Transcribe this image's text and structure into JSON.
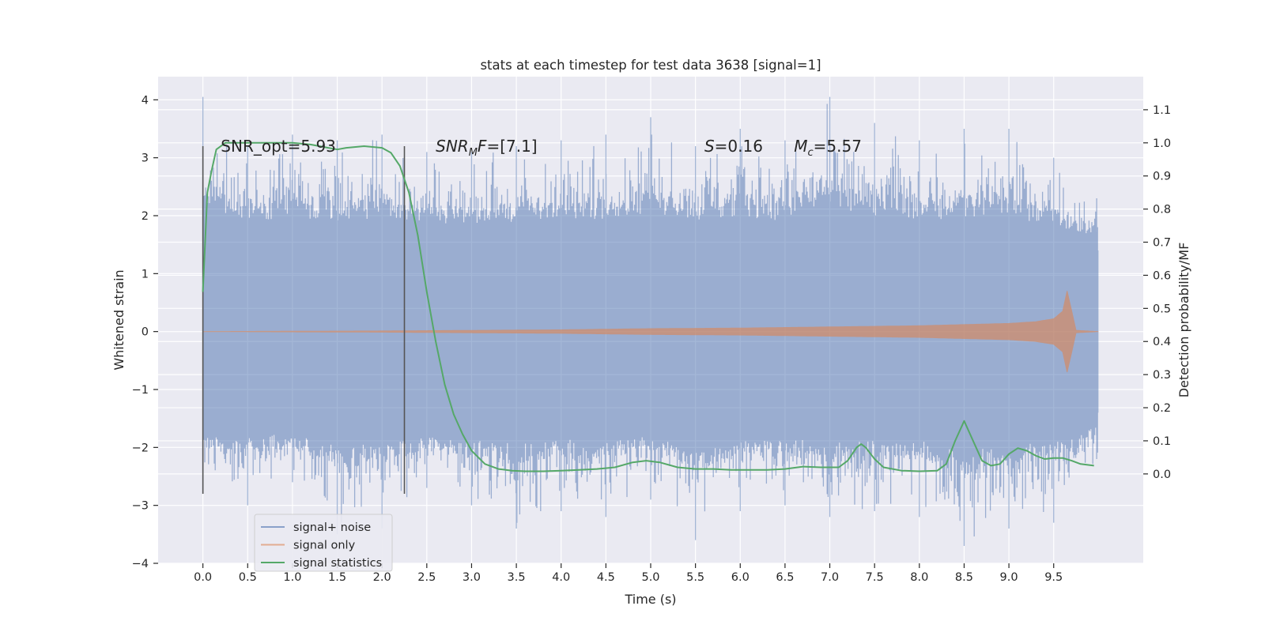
{
  "chart_data": {
    "type": "line",
    "title": "stats at each timestep for test data 3638 [signal=1]",
    "xlabel": "Time (s)",
    "ylabel_left": "Whitened strain",
    "ylabel_right": "Detection probability/MF",
    "xlim": [
      -0.5,
      10.5
    ],
    "ylim_left": [
      -4.0,
      4.4
    ],
    "ylim_right": [
      -0.27,
      1.2
    ],
    "x_ticks": [
      "0.0",
      "0.5",
      "1.0",
      "1.5",
      "2.0",
      "2.5",
      "3.0",
      "3.5",
      "4.0",
      "4.5",
      "5.0",
      "5.5",
      "6.0",
      "6.5",
      "7.0",
      "7.5",
      "8.0",
      "8.5",
      "9.0",
      "9.5"
    ],
    "y_ticks_left": [
      "−4",
      "−3",
      "−2",
      "−1",
      "0",
      "1",
      "2",
      "3",
      "4"
    ],
    "y_ticks_right": [
      "0.0",
      "0.1",
      "0.2",
      "0.3",
      "0.4",
      "0.5",
      "0.6",
      "0.7",
      "0.8",
      "0.9",
      "1.0",
      "1.1"
    ],
    "grid": true,
    "legend_position": "lower-left",
    "colors": {
      "background": "#eaeaf2",
      "grid": "#ffffff",
      "noise": "#4c72b0",
      "signal": "#dd8452",
      "stats": "#55a868",
      "marker": "#555555"
    },
    "series": [
      {
        "name": "signal+ noise",
        "axis": "left",
        "time_range_s": [
          0.0,
          10.0
        ],
        "envelope": {
          "x": [
            0.0,
            0.5,
            1.0,
            1.5,
            2.0,
            2.5,
            3.0,
            3.5,
            4.0,
            4.5,
            5.0,
            5.5,
            6.0,
            6.5,
            7.0,
            7.5,
            8.0,
            8.5,
            9.0,
            9.5,
            10.0
          ],
          "max": [
            4.05,
            3.2,
            3.4,
            3.3,
            3.4,
            3.1,
            3.1,
            3.2,
            3.3,
            3.4,
            3.7,
            3.2,
            3.5,
            3.3,
            4.05,
            3.6,
            3.3,
            3.5,
            3.5,
            3.0,
            2.3
          ],
          "min": [
            -2.8,
            -3.0,
            -2.6,
            -3.5,
            -3.4,
            -2.7,
            -3.0,
            -3.4,
            -3.1,
            -3.2,
            -2.9,
            -3.6,
            -3.1,
            -3.0,
            -3.2,
            -3.1,
            -3.2,
            -3.7,
            -3.4,
            -3.3,
            -2.2
          ]
        }
      },
      {
        "name": "signal only",
        "axis": "left",
        "envelope": {
          "x": [
            0.0,
            2.0,
            3.0,
            4.0,
            5.0,
            6.0,
            7.0,
            8.0,
            8.5,
            9.0,
            9.3,
            9.5,
            9.6,
            9.65,
            9.68,
            9.75,
            10.0
          ],
          "amp": [
            0.0,
            0.01,
            0.02,
            0.03,
            0.05,
            0.06,
            0.08,
            0.1,
            0.12,
            0.14,
            0.17,
            0.22,
            0.35,
            0.7,
            0.5,
            0.02,
            0.0
          ]
        }
      },
      {
        "name": "signal statistics",
        "axis": "right",
        "x": [
          0.0,
          0.05,
          0.1,
          0.15,
          0.25,
          0.5,
          0.8,
          1.0,
          1.2,
          1.4,
          1.5,
          1.6,
          1.8,
          2.0,
          2.1,
          2.2,
          2.3,
          2.4,
          2.5,
          2.6,
          2.7,
          2.8,
          2.9,
          3.0,
          3.15,
          3.3,
          3.45,
          3.6,
          3.8,
          4.0,
          4.2,
          4.4,
          4.6,
          4.8,
          4.95,
          5.1,
          5.3,
          5.5,
          5.7,
          5.9,
          6.1,
          6.3,
          6.5,
          6.7,
          6.9,
          7.1,
          7.2,
          7.3,
          7.35,
          7.4,
          7.5,
          7.6,
          7.8,
          8.0,
          8.2,
          8.3,
          8.4,
          8.5,
          8.6,
          8.7,
          8.8,
          8.9,
          9.0,
          9.1,
          9.2,
          9.3,
          9.4,
          9.5,
          9.6,
          9.7,
          9.8,
          9.95
        ],
        "y": [
          0.55,
          0.85,
          0.92,
          0.98,
          1.0,
          1.0,
          1.0,
          1.0,
          0.995,
          0.985,
          0.98,
          0.985,
          0.99,
          0.985,
          0.97,
          0.93,
          0.85,
          0.72,
          0.55,
          0.4,
          0.27,
          0.18,
          0.12,
          0.07,
          0.03,
          0.015,
          0.01,
          0.008,
          0.008,
          0.01,
          0.012,
          0.015,
          0.02,
          0.035,
          0.04,
          0.035,
          0.02,
          0.015,
          0.015,
          0.012,
          0.012,
          0.012,
          0.015,
          0.022,
          0.02,
          0.02,
          0.04,
          0.08,
          0.09,
          0.08,
          0.045,
          0.02,
          0.01,
          0.008,
          0.01,
          0.03,
          0.1,
          0.16,
          0.1,
          0.04,
          0.025,
          0.03,
          0.06,
          0.078,
          0.07,
          0.055,
          0.045,
          0.048,
          0.048,
          0.04,
          0.03,
          0.025
        ]
      }
    ],
    "vlines": {
      "x": [
        0.0,
        2.25
      ],
      "y_range_left": [
        -2.8,
        3.2
      ]
    },
    "annotations": [
      {
        "x": 0.2,
        "y": 3.2,
        "text": "SNR_opt=5.93"
      },
      {
        "x": 2.6,
        "y": 3.2,
        "text": "SNRMF=[7.1]"
      },
      {
        "x": 5.6,
        "y": 3.2,
        "text": "S=0.16"
      },
      {
        "x": 6.6,
        "y": 3.2,
        "text": "Mc=5.57"
      }
    ]
  }
}
